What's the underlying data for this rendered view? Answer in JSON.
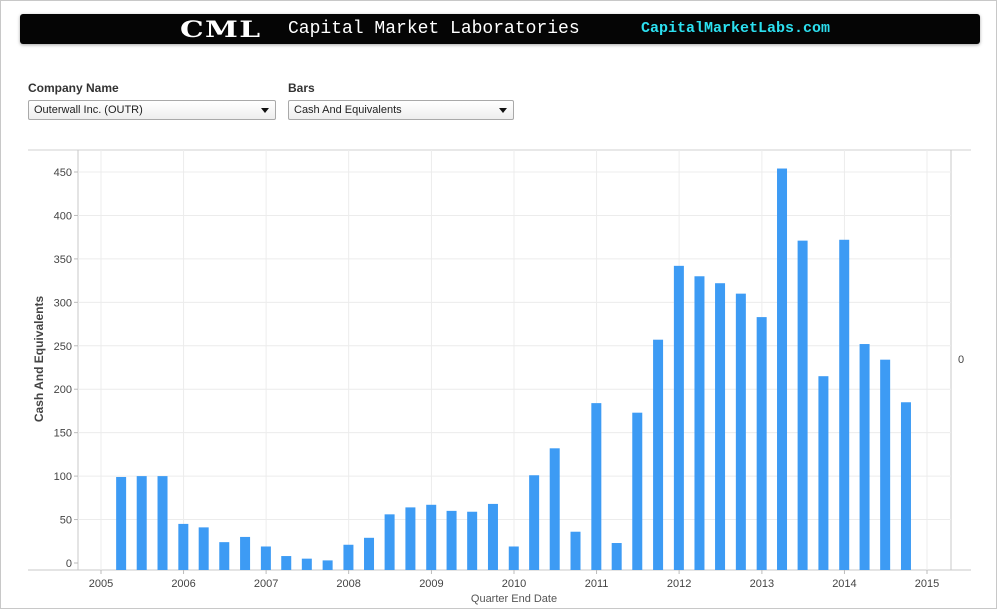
{
  "header": {
    "logo": "CML",
    "name": "Capital Market Laboratories",
    "site": "CapitalMarketLabs.com"
  },
  "filters": {
    "company_label": "Company Name",
    "company_value": "Outerwall Inc. (OUTR)",
    "bars_label": "Bars",
    "bars_value": "Cash And Equivalents"
  },
  "colors": {
    "bar": "#3d9bf4",
    "banner_bg": "#050505",
    "site_text": "#2ce0f0"
  },
  "chart_data": {
    "type": "bar",
    "xlabel": "Quarter End Date",
    "ylabel": "Cash And Equivalents",
    "ylim": [
      0,
      480
    ],
    "y_ticks": [
      0,
      50,
      100,
      150,
      200,
      250,
      300,
      350,
      400,
      450
    ],
    "x_ticks": [
      "2005",
      "2006",
      "2007",
      "2008",
      "2009",
      "2010",
      "2011",
      "2012",
      "2013",
      "2014",
      "2015"
    ],
    "right_axis_label": "0",
    "grid": true,
    "series": [
      {
        "values": [
          [
            "2005-03-31",
            99
          ],
          [
            "2005-06-30",
            100
          ],
          [
            "2005-09-30",
            100
          ],
          [
            "2005-12-31",
            45
          ],
          [
            "2006-03-31",
            41
          ],
          [
            "2006-06-30",
            24
          ],
          [
            "2006-09-30",
            30
          ],
          [
            "2006-12-31",
            19
          ],
          [
            "2007-03-31",
            8
          ],
          [
            "2007-06-30",
            5
          ],
          [
            "2007-09-30",
            3
          ],
          [
            "2007-12-31",
            21
          ],
          [
            "2008-03-31",
            29
          ],
          [
            "2008-06-30",
            56
          ],
          [
            "2008-09-30",
            64
          ],
          [
            "2008-12-31",
            67
          ],
          [
            "2009-03-31",
            60
          ],
          [
            "2009-06-30",
            59
          ],
          [
            "2009-09-30",
            68
          ],
          [
            "2009-12-31",
            19
          ],
          [
            "2010-03-31",
            101
          ],
          [
            "2010-06-30",
            132
          ],
          [
            "2010-09-30",
            36
          ],
          [
            "2010-12-31",
            184
          ],
          [
            "2011-03-31",
            23
          ],
          [
            "2011-06-30",
            173
          ],
          [
            "2011-09-30",
            257
          ],
          [
            "2011-12-31",
            342
          ],
          [
            "2012-03-31",
            330
          ],
          [
            "2012-06-30",
            322
          ],
          [
            "2012-09-30",
            310
          ],
          [
            "2012-12-31",
            283
          ],
          [
            "2013-03-31",
            454
          ],
          [
            "2013-06-30",
            371
          ],
          [
            "2013-09-30",
            215
          ],
          [
            "2013-12-31",
            372
          ],
          [
            "2014-03-31",
            252
          ],
          [
            "2014-06-30",
            234
          ],
          [
            "2014-09-30",
            185
          ]
        ]
      }
    ]
  }
}
